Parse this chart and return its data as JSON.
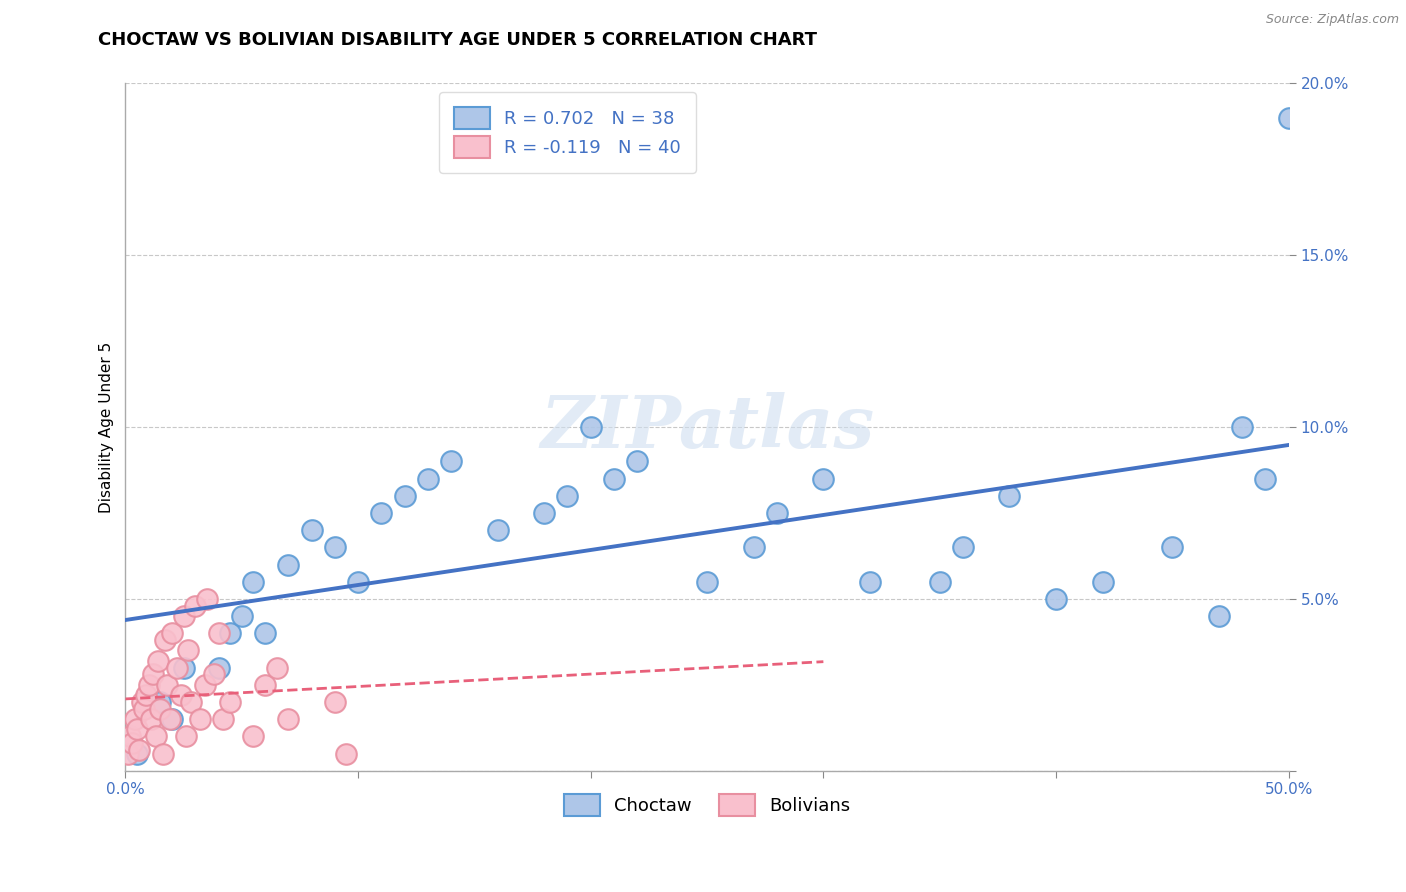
{
  "title": "CHOCTAW VS BOLIVIAN DISABILITY AGE UNDER 5 CORRELATION CHART",
  "source_text": "Source: ZipAtlas.com",
  "ylabel": "Disability Age Under 5",
  "xlim": [
    0,
    0.5
  ],
  "ylim": [
    0,
    0.2
  ],
  "xticks": [
    0.0,
    0.1,
    0.2,
    0.3,
    0.4,
    0.5
  ],
  "yticks": [
    0.0,
    0.05,
    0.1,
    0.15,
    0.2
  ],
  "xticklabels_right": [
    "",
    "",
    "",
    "",
    "",
    "50.0%"
  ],
  "xticklabel_left": "0.0%",
  "yticklabels": [
    "",
    "5.0%",
    "10.0%",
    "15.0%",
    "20.0%"
  ],
  "choctaw_R": 0.702,
  "choctaw_N": 38,
  "bolivian_R": -0.119,
  "bolivian_N": 40,
  "choctaw_color": "#aec6e8",
  "choctaw_edge_color": "#5b9bd5",
  "choctaw_line_color": "#4472c4",
  "bolivian_color": "#f9c0cd",
  "bolivian_edge_color": "#e88fa0",
  "bolivian_line_color": "#e8607a",
  "legend_label_choctaw": "Choctaw",
  "legend_label_bolivian": "Bolivians",
  "choctaw_x": [
    0.005,
    0.015,
    0.02,
    0.025,
    0.04,
    0.045,
    0.05,
    0.055,
    0.06,
    0.07,
    0.08,
    0.09,
    0.1,
    0.11,
    0.12,
    0.13,
    0.14,
    0.16,
    0.18,
    0.19,
    0.2,
    0.21,
    0.22,
    0.25,
    0.27,
    0.28,
    0.3,
    0.32,
    0.35,
    0.36,
    0.38,
    0.4,
    0.42,
    0.45,
    0.47,
    0.48,
    0.49,
    0.5
  ],
  "choctaw_y": [
    0.005,
    0.02,
    0.015,
    0.03,
    0.03,
    0.04,
    0.045,
    0.055,
    0.04,
    0.06,
    0.07,
    0.065,
    0.055,
    0.075,
    0.08,
    0.085,
    0.09,
    0.07,
    0.075,
    0.08,
    0.1,
    0.085,
    0.09,
    0.055,
    0.065,
    0.075,
    0.085,
    0.055,
    0.055,
    0.065,
    0.08,
    0.05,
    0.055,
    0.065,
    0.045,
    0.1,
    0.085,
    0.19
  ],
  "bolivian_x": [
    0.001,
    0.002,
    0.003,
    0.004,
    0.005,
    0.006,
    0.007,
    0.008,
    0.009,
    0.01,
    0.011,
    0.012,
    0.013,
    0.014,
    0.015,
    0.016,
    0.017,
    0.018,
    0.019,
    0.02,
    0.022,
    0.024,
    0.025,
    0.026,
    0.027,
    0.028,
    0.03,
    0.032,
    0.034,
    0.035,
    0.038,
    0.04,
    0.042,
    0.045,
    0.055,
    0.06,
    0.065,
    0.07,
    0.09,
    0.095
  ],
  "bolivian_y": [
    0.005,
    0.01,
    0.008,
    0.015,
    0.012,
    0.006,
    0.02,
    0.018,
    0.022,
    0.025,
    0.015,
    0.028,
    0.01,
    0.032,
    0.018,
    0.005,
    0.038,
    0.025,
    0.015,
    0.04,
    0.03,
    0.022,
    0.045,
    0.01,
    0.035,
    0.02,
    0.048,
    0.015,
    0.025,
    0.05,
    0.028,
    0.04,
    0.015,
    0.02,
    0.01,
    0.025,
    0.03,
    0.015,
    0.02,
    0.005
  ],
  "watermark": "ZIPatlas",
  "background_color": "#ffffff",
  "title_fontsize": 13,
  "axis_label_fontsize": 11,
  "tick_fontsize": 11,
  "legend_fontsize": 13
}
